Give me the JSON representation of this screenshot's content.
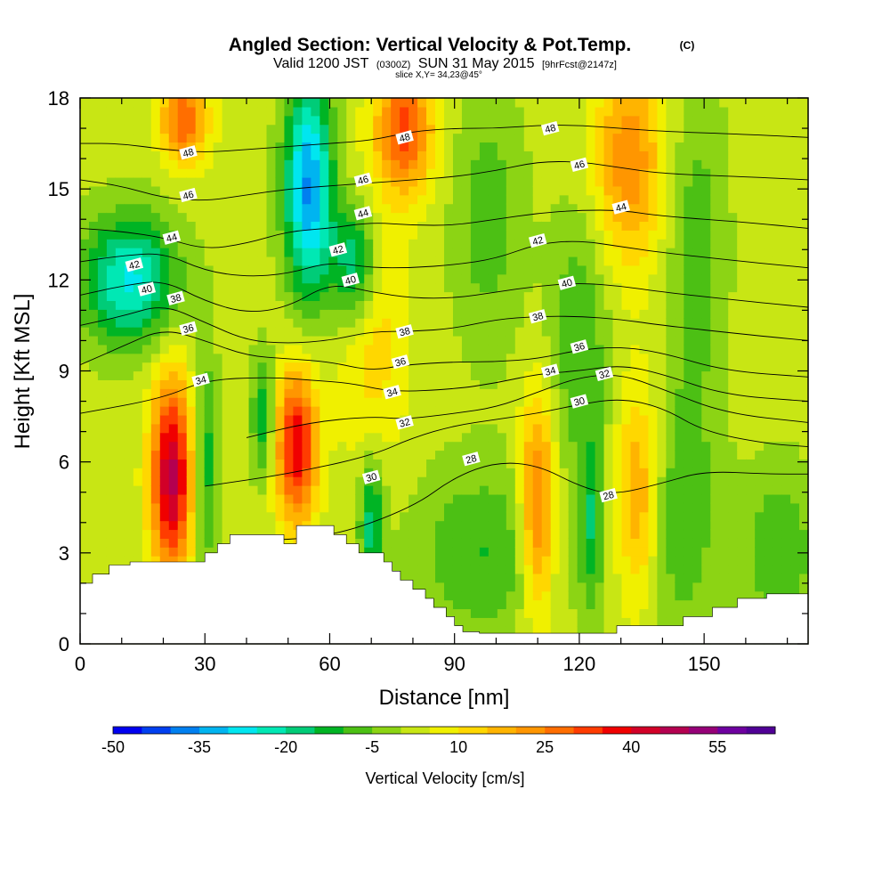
{
  "chart_data": {
    "type": "heatmap",
    "title": "Angled Section: Vertical Velocity & Pot.Temp.",
    "title_unit": "(C)",
    "subtitle_main": "Valid 1200 JST",
    "subtitle_z": "(0300Z)",
    "subtitle_date": "SUN 31 May 2015",
    "subtitle_fcst": "[9hrFcst@2147z]",
    "slice_label": "slice X,Y= 34,23@45°",
    "xlabel": "Distance [nm]",
    "ylabel": "Height [Kft MSL]",
    "xlim": [
      0,
      175
    ],
    "ylim": [
      0,
      18
    ],
    "x_ticks": [
      0,
      30,
      60,
      90,
      120,
      150
    ],
    "y_ticks": [
      0,
      3,
      6,
      9,
      12,
      15,
      18
    ],
    "colorbar": {
      "label": "Vertical Velocity [cm/s]",
      "min": -50,
      "max": 65,
      "step": 5,
      "tick_values": [
        -50,
        -35,
        -20,
        -5,
        10,
        25,
        40,
        55
      ],
      "colors": [
        "#0000f0",
        "#0040f0",
        "#0080f0",
        "#00b4f0",
        "#00e6f0",
        "#00e8b4",
        "#00cc78",
        "#00b424",
        "#4cc014",
        "#8cd414",
        "#c8e614",
        "#f0f000",
        "#ffd700",
        "#ffb400",
        "#ff9600",
        "#ff6e00",
        "#ff3c00",
        "#f00000",
        "#d20028",
        "#b40050",
        "#960078",
        "#6e00a0",
        "#500096"
      ]
    },
    "velocity_cells": [
      {
        "x": 22,
        "z": 5.5,
        "w": 45,
        "sx": 3.5,
        "sz": 2.3
      },
      {
        "x": 52,
        "z": 6.5,
        "w": 38,
        "sx": 3.5,
        "sz": 1.8
      },
      {
        "x": 110,
        "z": 4.5,
        "w": 28,
        "sx": 3,
        "sz": 2.5
      },
      {
        "x": 134,
        "z": 5,
        "w": 18,
        "sx": 3.5,
        "sz": 2.5
      },
      {
        "x": 78,
        "z": 17,
        "w": 30,
        "sx": 5,
        "sz": 1.5
      },
      {
        "x": 25,
        "z": 17.3,
        "w": 28,
        "sx": 4,
        "sz": 1
      },
      {
        "x": 132,
        "z": 16,
        "w": 22,
        "sx": 6,
        "sz": 2.5
      },
      {
        "x": 70,
        "z": 10.5,
        "w": 12,
        "sx": 6,
        "sz": 3
      },
      {
        "x": 55,
        "z": 15,
        "w": -38,
        "sx": 4,
        "sz": 2.5
      },
      {
        "x": 12,
        "z": 12,
        "w": -28,
        "sx": 8,
        "sz": 1.5
      },
      {
        "x": 66,
        "z": 12.5,
        "w": -25,
        "sx": 4,
        "sz": 1.5
      },
      {
        "x": 70,
        "z": 4,
        "w": -20,
        "sx": 2,
        "sz": 1.5
      },
      {
        "x": 30,
        "z": 6,
        "w": -16,
        "sx": 2,
        "sz": 2.5
      },
      {
        "x": 44,
        "z": 7.5,
        "w": -16,
        "sx": 2,
        "sz": 1.5
      },
      {
        "x": 97,
        "z": 3,
        "w": -12,
        "sx": 12,
        "sz": 2
      },
      {
        "x": 123,
        "z": 4,
        "w": -16,
        "sx": 2,
        "sz": 2
      },
      {
        "x": 145,
        "z": 4,
        "w": -10,
        "sx": 6,
        "sz": 3
      },
      {
        "x": 168,
        "z": 3,
        "w": -12,
        "sx": 6,
        "sz": 2
      },
      {
        "x": 98,
        "z": 14,
        "w": -10,
        "sx": 6,
        "sz": 3
      },
      {
        "x": 120,
        "z": 10,
        "w": -12,
        "sx": 5,
        "sz": 3
      },
      {
        "x": 148,
        "z": 13,
        "w": -10,
        "sx": 5,
        "sz": 4
      }
    ],
    "terrain": [
      [
        0,
        2.0
      ],
      [
        3,
        2.3
      ],
      [
        7,
        2.6
      ],
      [
        12,
        2.7
      ],
      [
        27,
        2.7
      ],
      [
        30,
        3.0
      ],
      [
        33,
        3.3
      ],
      [
        36,
        3.6
      ],
      [
        48,
        3.6
      ],
      [
        49,
        3.3
      ],
      [
        52,
        3.9
      ],
      [
        58,
        3.9
      ],
      [
        61,
        3.6
      ],
      [
        64,
        3.3
      ],
      [
        67,
        3.0
      ],
      [
        70,
        3.0
      ],
      [
        73,
        2.7
      ],
      [
        75,
        2.4
      ],
      [
        77,
        2.1
      ],
      [
        80,
        1.8
      ],
      [
        83,
        1.5
      ],
      [
        85,
        1.2
      ],
      [
        88,
        0.9
      ],
      [
        90,
        0.6
      ],
      [
        92,
        0.4
      ],
      [
        96,
        0.35
      ],
      [
        121,
        0.35
      ],
      [
        129,
        0.6
      ],
      [
        145,
        0.9
      ],
      [
        152,
        1.2
      ],
      [
        158,
        1.5
      ],
      [
        165,
        1.65
      ],
      [
        175,
        1.65
      ]
    ],
    "isentropes": [
      {
        "value": 28,
        "points": [
          [
            40,
            3.4
          ],
          [
            60,
            3.5
          ],
          [
            80,
            4.5
          ],
          [
            90,
            5.5
          ],
          [
            100,
            6.0
          ],
          [
            110,
            5.9
          ],
          [
            120,
            5.2
          ],
          [
            128,
            4.9
          ],
          [
            140,
            5.3
          ],
          [
            150,
            5.7
          ],
          [
            165,
            5.6
          ],
          [
            175,
            5.6
          ]
        ]
      },
      {
        "value": 30,
        "points": [
          [
            30,
            5.2
          ],
          [
            50,
            5.6
          ],
          [
            70,
            6.2
          ],
          [
            80,
            6.8
          ],
          [
            90,
            7.2
          ],
          [
            100,
            7.4
          ],
          [
            110,
            7.6
          ],
          [
            120,
            7.9
          ],
          [
            130,
            8.1
          ],
          [
            140,
            7.8
          ],
          [
            150,
            7.0
          ],
          [
            165,
            6.6
          ],
          [
            175,
            6.5
          ]
        ]
      },
      {
        "value": 32,
        "points": [
          [
            40,
            6.8
          ],
          [
            55,
            7.3
          ],
          [
            70,
            7.5
          ],
          [
            78,
            7.4
          ],
          [
            90,
            7.6
          ],
          [
            100,
            7.8
          ],
          [
            110,
            8.3
          ],
          [
            120,
            8.8
          ],
          [
            130,
            8.9
          ],
          [
            140,
            8.4
          ],
          [
            155,
            7.6
          ],
          [
            175,
            7.3
          ]
        ]
      },
      {
        "value": 34,
        "points": [
          [
            0,
            7.6
          ],
          [
            20,
            8.1
          ],
          [
            30,
            8.7
          ],
          [
            45,
            8.8
          ],
          [
            55,
            8.7
          ],
          [
            65,
            8.6
          ],
          [
            75,
            8.3
          ],
          [
            90,
            8.4
          ],
          [
            100,
            8.6
          ],
          [
            110,
            8.9
          ],
          [
            120,
            9.0
          ],
          [
            130,
            9.2
          ],
          [
            140,
            8.9
          ],
          [
            155,
            8.2
          ],
          [
            175,
            8.0
          ]
        ]
      },
      {
        "value": 36,
        "points": [
          [
            0,
            9.2
          ],
          [
            10,
            9.8
          ],
          [
            20,
            10.4
          ],
          [
            30,
            10.0
          ],
          [
            40,
            9.5
          ],
          [
            50,
            9.4
          ],
          [
            60,
            9.3
          ],
          [
            70,
            9.0
          ],
          [
            78,
            9.2
          ],
          [
            90,
            9.3
          ],
          [
            100,
            9.3
          ],
          [
            110,
            9.4
          ],
          [
            120,
            9.7
          ],
          [
            130,
            9.8
          ],
          [
            140,
            9.6
          ],
          [
            155,
            9.0
          ],
          [
            175,
            8.8
          ]
        ]
      },
      {
        "value": 38,
        "points": [
          [
            0,
            10.5
          ],
          [
            10,
            10.8
          ],
          [
            20,
            11.2
          ],
          [
            30,
            10.6
          ],
          [
            40,
            10.0
          ],
          [
            50,
            9.9
          ],
          [
            60,
            10.0
          ],
          [
            70,
            10.3
          ],
          [
            80,
            10.3
          ],
          [
            90,
            10.4
          ],
          [
            100,
            10.7
          ],
          [
            110,
            10.8
          ],
          [
            120,
            10.8
          ],
          [
            130,
            10.7
          ],
          [
            140,
            10.5
          ],
          [
            160,
            10.2
          ],
          [
            175,
            10.0
          ]
        ]
      },
      {
        "value": 40,
        "points": [
          [
            0,
            11.5
          ],
          [
            10,
            11.8
          ],
          [
            20,
            12.0
          ],
          [
            30,
            11.3
          ],
          [
            40,
            10.9
          ],
          [
            50,
            11.1
          ],
          [
            60,
            11.9
          ],
          [
            70,
            11.6
          ],
          [
            80,
            11.4
          ],
          [
            90,
            11.4
          ],
          [
            100,
            11.6
          ],
          [
            110,
            11.8
          ],
          [
            120,
            11.9
          ],
          [
            130,
            11.8
          ],
          [
            140,
            11.6
          ],
          [
            160,
            11.3
          ],
          [
            175,
            11.1
          ]
        ]
      },
      {
        "value": 42,
        "points": [
          [
            0,
            12.6
          ],
          [
            10,
            12.8
          ],
          [
            20,
            12.9
          ],
          [
            30,
            12.3
          ],
          [
            40,
            12.1
          ],
          [
            50,
            12.2
          ],
          [
            60,
            12.6
          ],
          [
            70,
            12.4
          ],
          [
            80,
            12.4
          ],
          [
            90,
            12.5
          ],
          [
            100,
            12.7
          ],
          [
            110,
            13.2
          ],
          [
            120,
            13.3
          ],
          [
            130,
            13.1
          ],
          [
            140,
            12.9
          ],
          [
            160,
            12.6
          ],
          [
            175,
            12.4
          ]
        ]
      },
      {
        "value": 44,
        "points": [
          [
            0,
            13.7
          ],
          [
            10,
            13.6
          ],
          [
            20,
            13.4
          ],
          [
            30,
            13.0
          ],
          [
            40,
            13.2
          ],
          [
            50,
            13.6
          ],
          [
            60,
            13.7
          ],
          [
            70,
            13.9
          ],
          [
            80,
            13.8
          ],
          [
            90,
            13.8
          ],
          [
            100,
            14.0
          ],
          [
            110,
            14.2
          ],
          [
            120,
            14.3
          ],
          [
            130,
            14.3
          ],
          [
            140,
            14.1
          ],
          [
            160,
            13.9
          ],
          [
            175,
            13.7
          ]
        ]
      },
      {
        "value": 46,
        "points": [
          [
            0,
            15.3
          ],
          [
            10,
            15.1
          ],
          [
            20,
            14.7
          ],
          [
            30,
            14.6
          ],
          [
            40,
            14.8
          ],
          [
            50,
            15.0
          ],
          [
            60,
            15.1
          ],
          [
            70,
            15.2
          ],
          [
            80,
            15.3
          ],
          [
            90,
            15.4
          ],
          [
            100,
            15.6
          ],
          [
            110,
            15.9
          ],
          [
            120,
            15.9
          ],
          [
            130,
            15.7
          ],
          [
            140,
            15.5
          ],
          [
            160,
            15.4
          ],
          [
            175,
            15.3
          ]
        ]
      },
      {
        "value": 48,
        "points": [
          [
            0,
            16.5
          ],
          [
            10,
            16.5
          ],
          [
            20,
            16.3
          ],
          [
            30,
            16.2
          ],
          [
            40,
            16.3
          ],
          [
            50,
            16.4
          ],
          [
            60,
            16.5
          ],
          [
            70,
            16.6
          ],
          [
            80,
            16.9
          ],
          [
            90,
            17.0
          ],
          [
            100,
            17.0
          ],
          [
            110,
            17.1
          ],
          [
            120,
            17.1
          ],
          [
            130,
            17.0
          ],
          [
            140,
            16.9
          ],
          [
            160,
            16.8
          ],
          [
            175,
            16.7
          ]
        ]
      }
    ],
    "contour_labels": [
      {
        "text": "48",
        "x": 26,
        "z": 16.2
      },
      {
        "text": "46",
        "x": 26,
        "z": 14.8
      },
      {
        "text": "44",
        "x": 22,
        "z": 13.4
      },
      {
        "text": "42",
        "x": 13,
        "z": 12.5
      },
      {
        "text": "40",
        "x": 16,
        "z": 11.7
      },
      {
        "text": "38",
        "x": 23,
        "z": 11.4
      },
      {
        "text": "36",
        "x": 26,
        "z": 10.4
      },
      {
        "text": "34",
        "x": 29,
        "z": 8.7
      },
      {
        "text": "48",
        "x": 78,
        "z": 16.7
      },
      {
        "text": "46",
        "x": 68,
        "z": 15.3
      },
      {
        "text": "44",
        "x": 68,
        "z": 14.2
      },
      {
        "text": "42",
        "x": 62,
        "z": 13.0
      },
      {
        "text": "40",
        "x": 65,
        "z": 12.0
      },
      {
        "text": "38",
        "x": 78,
        "z": 10.3
      },
      {
        "text": "36",
        "x": 77,
        "z": 9.3
      },
      {
        "text": "34",
        "x": 75,
        "z": 8.3
      },
      {
        "text": "32",
        "x": 78,
        "z": 7.3
      },
      {
        "text": "30",
        "x": 70,
        "z": 5.5
      },
      {
        "text": "28",
        "x": 94,
        "z": 6.1
      },
      {
        "text": "48",
        "x": 113,
        "z": 17.0
      },
      {
        "text": "46",
        "x": 120,
        "z": 15.8
      },
      {
        "text": "44",
        "x": 130,
        "z": 14.4
      },
      {
        "text": "42",
        "x": 110,
        "z": 13.3
      },
      {
        "text": "40",
        "x": 117,
        "z": 11.9
      },
      {
        "text": "38",
        "x": 110,
        "z": 10.8
      },
      {
        "text": "36",
        "x": 120,
        "z": 9.8
      },
      {
        "text": "34",
        "x": 113,
        "z": 9.0
      },
      {
        "text": "32",
        "x": 126,
        "z": 8.9
      },
      {
        "text": "30",
        "x": 120,
        "z": 8.0
      },
      {
        "text": "28",
        "x": 127,
        "z": 4.9
      }
    ]
  }
}
